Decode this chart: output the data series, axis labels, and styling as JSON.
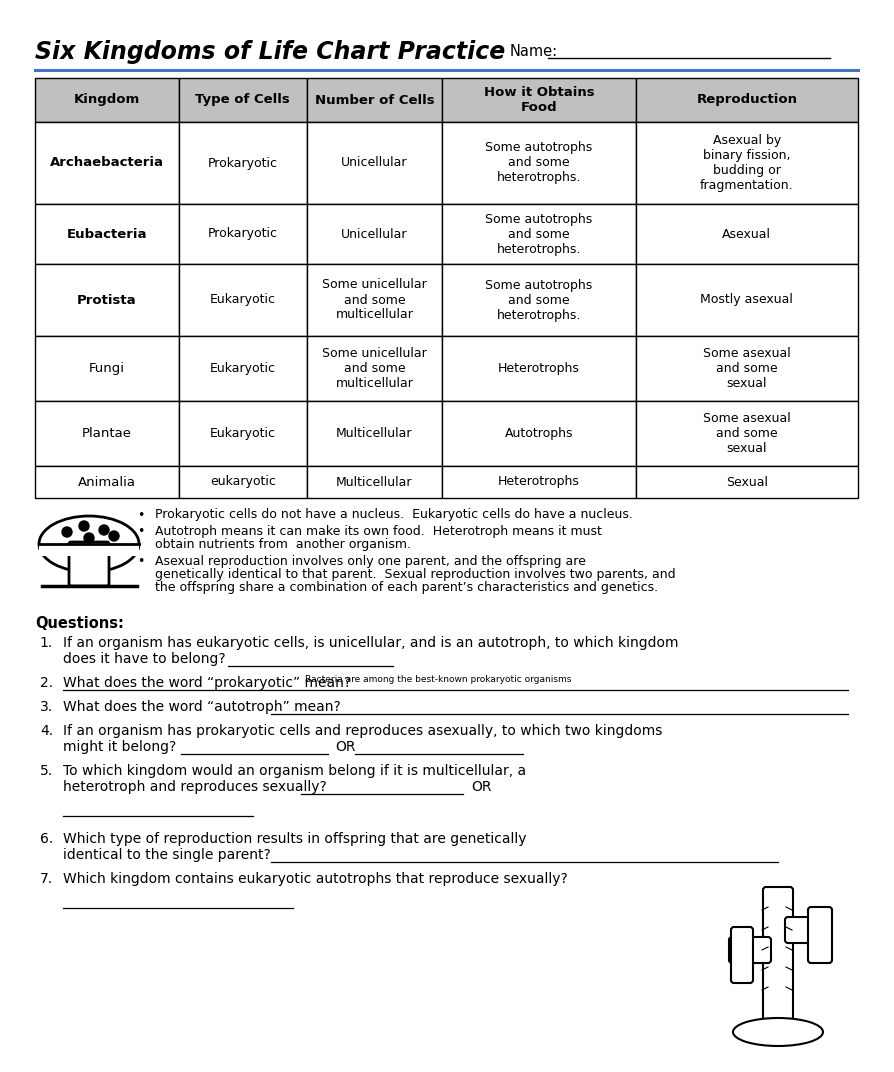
{
  "title": "Six Kingdoms of Life Chart Practice",
  "name_label": "Name:",
  "bg_color": "#ffffff",
  "header_bg": "#c0c0c0",
  "row_bg": "#ffffff",
  "col_headers": [
    "Kingdom",
    "Type of Cells",
    "Number of Cells",
    "How it Obtains\nFood",
    "Reproduction"
  ],
  "rows": [
    {
      "kingdom": "Archaebacteria",
      "kingdom_bold": true,
      "type": "Prokaryotic",
      "number": "Unicellular",
      "food": "Some autotrophs\nand some\nheterotrophs.",
      "reproduction": "Asexual by\nbinary fission,\nbudding or\nfragmentation."
    },
    {
      "kingdom": "Eubacteria",
      "kingdom_bold": true,
      "type": "Prokaryotic",
      "number": "Unicellular",
      "food": "Some autotrophs\nand some\nheterotrophs.",
      "reproduction": "Asexual"
    },
    {
      "kingdom": "Protista",
      "kingdom_bold": true,
      "type": "Eukaryotic",
      "number": "Some unicellular\nand some\nmulticellular",
      "food": "Some autotrophs\nand some\nheterotrophs.",
      "reproduction": "Mostly asexual"
    },
    {
      "kingdom": "Fungi",
      "kingdom_bold": false,
      "type": "Eukaryotic",
      "number": "Some unicellular\nand some\nmulticellular",
      "food": "Heterotrophs",
      "reproduction": "Some asexual\nand some\nsexual"
    },
    {
      "kingdom": "Plantae",
      "kingdom_bold": false,
      "type": "Eukaryotic",
      "number": "Multicellular",
      "food": "Autotrophs",
      "reproduction": "Some asexual\nand some\nsexual"
    },
    {
      "kingdom": "Animalia",
      "kingdom_bold": false,
      "type": "eukaryotic",
      "number": "Multicellular",
      "food": "Heterotrophs",
      "reproduction": "Sexual"
    }
  ],
  "bullets": [
    "Prokaryotic cells do not have a nucleus.  Eukaryotic cells do have a nucleus.",
    "Autotroph means it can make its own food.  Heterotroph means it must\nobtain nutrients from  another organism.",
    "Asexual reproduction involves only one parent, and the offspring are\ngenetically identical to that parent.  Sexual reproduction involves two parents, and\nthe offspring share a combination of each parent’s characteristics and genetics."
  ],
  "questions_header": "Questions:",
  "q1": "If an organism has eukaryotic cells, is unicellular, and is an autotroph, to which kingdom",
  "q1b": "does it have to belong?",
  "q2a": "What does the word “prokaryotic” mean?",
  "q2_small": "Bacteria are among the best-known prokaryotic organisms",
  "q3": "What does the word “autotroph” mean?",
  "q4a": "If an organism has prokaryotic cells and reproduces asexually, to which two kingdoms",
  "q4b": "might it belong?",
  "q4_or": "OR",
  "q5a": "To which kingdom would an organism belong if it is multicellular, a",
  "q5b": "heterotroph and reproduces sexually?",
  "q5_or": "OR",
  "q6a": "Which type of reproduction results in offspring that are genetically",
  "q6b": "identical to the single parent?",
  "q7": "Which kingdom contains eukaryotic autotrophs that reproduce sexually?"
}
